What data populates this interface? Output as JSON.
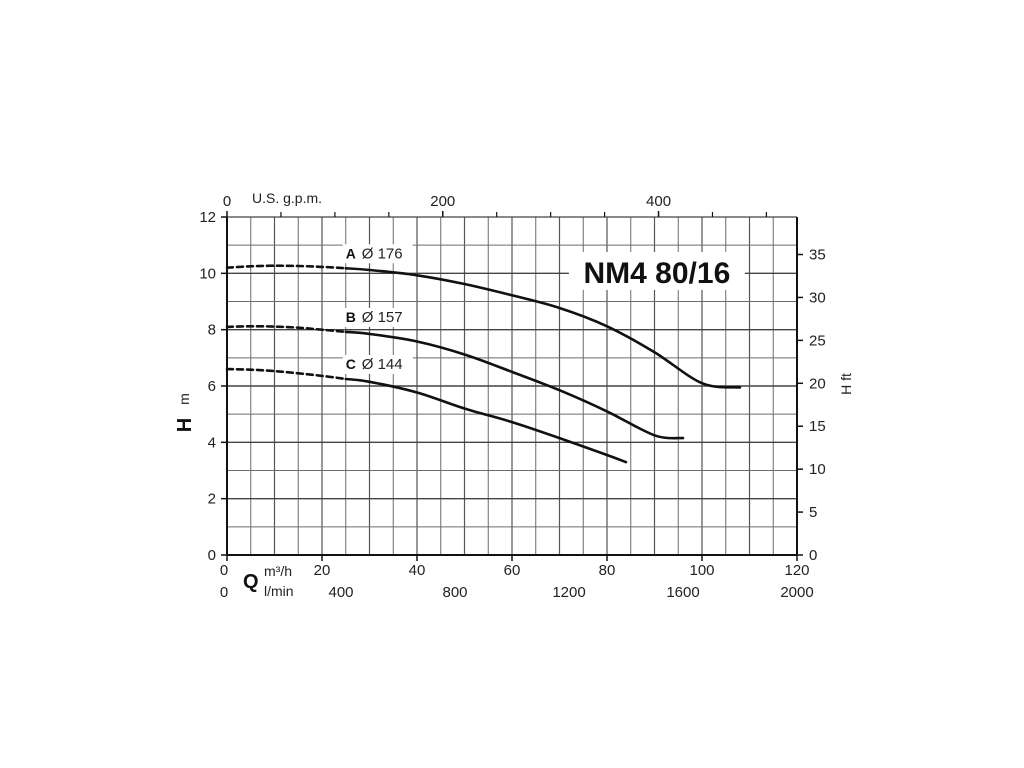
{
  "chart_data": {
    "type": "line",
    "title": "NM4 80/16",
    "x_axis_bottom_primary": {
      "label_symbol": "Q",
      "unit": "m³/h",
      "ticks": [
        0,
        20,
        40,
        60,
        80,
        100,
        120
      ],
      "range": [
        0,
        120
      ]
    },
    "x_axis_bottom_secondary": {
      "unit": "l/min",
      "ticks": [
        0,
        400,
        800,
        1200,
        1600,
        2000
      ],
      "range": [
        0,
        2000
      ]
    },
    "x_axis_top": {
      "unit": "U.S. g.p.m.",
      "ticks": [
        0,
        200,
        400
      ]
    },
    "y_axis_left": {
      "label_symbol": "H",
      "unit": "m",
      "ticks": [
        0,
        2,
        4,
        6,
        8,
        10,
        12
      ],
      "range": [
        0,
        12
      ]
    },
    "y_axis_right": {
      "label": "H ft",
      "ticks": [
        0,
        5,
        10,
        15,
        20,
        25,
        30,
        35
      ]
    },
    "grid": true,
    "series": [
      {
        "letter": "A",
        "diameter": "Ø 176",
        "dashed": [
          [
            0,
            10.2
          ],
          [
            5,
            10.25
          ],
          [
            10,
            10.27
          ],
          [
            15,
            10.26
          ],
          [
            20,
            10.23
          ],
          [
            25,
            10.18
          ]
        ],
        "solid": [
          [
            25,
            10.18
          ],
          [
            30,
            10.12
          ],
          [
            40,
            9.93
          ],
          [
            50,
            9.62
          ],
          [
            60,
            9.22
          ],
          [
            70,
            8.77
          ],
          [
            80,
            8.12
          ],
          [
            90,
            7.2
          ],
          [
            100,
            6.1
          ],
          [
            108,
            5.95
          ]
        ]
      },
      {
        "letter": "B",
        "diameter": "Ø 157",
        "dashed": [
          [
            0,
            8.1
          ],
          [
            5,
            8.12
          ],
          [
            10,
            8.11
          ],
          [
            15,
            8.07
          ],
          [
            20,
            8.0
          ],
          [
            25,
            7.92
          ]
        ],
        "solid": [
          [
            25,
            7.92
          ],
          [
            30,
            7.85
          ],
          [
            40,
            7.58
          ],
          [
            50,
            7.12
          ],
          [
            60,
            6.5
          ],
          [
            70,
            5.85
          ],
          [
            80,
            5.1
          ],
          [
            90,
            4.25
          ],
          [
            96,
            4.15
          ]
        ]
      },
      {
        "letter": "C",
        "diameter": "Ø 144",
        "dashed": [
          [
            0,
            6.6
          ],
          [
            5,
            6.58
          ],
          [
            10,
            6.53
          ],
          [
            15,
            6.45
          ],
          [
            20,
            6.36
          ],
          [
            25,
            6.25
          ]
        ],
        "solid": [
          [
            25,
            6.25
          ],
          [
            30,
            6.15
          ],
          [
            40,
            5.77
          ],
          [
            50,
            5.2
          ],
          [
            60,
            4.72
          ],
          [
            70,
            4.15
          ],
          [
            80,
            3.55
          ],
          [
            84,
            3.3
          ]
        ]
      }
    ]
  }
}
